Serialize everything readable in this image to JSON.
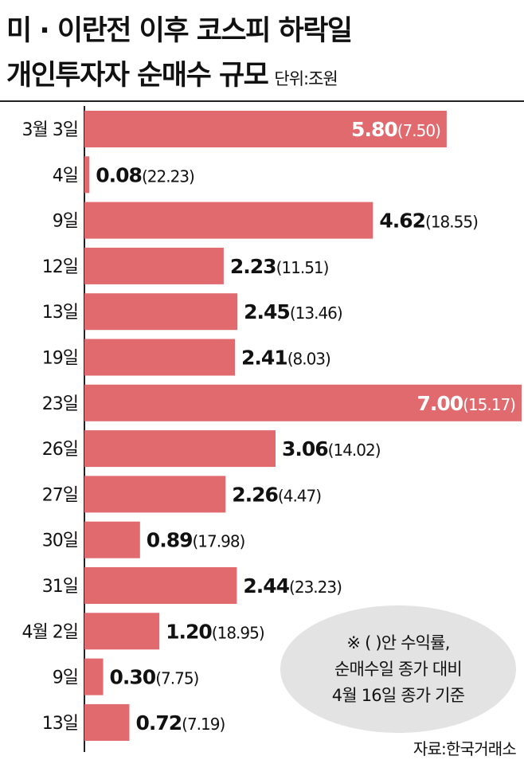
{
  "title_line1": "미 · 이란전 이후 코스피 하락일",
  "title_line2": "개인투자자 순매수 규모",
  "unit": "단위:조원",
  "note": {
    "line1": "※ (   )안 수익률,",
    "line2": "순매수일 종가 대비",
    "line3": "4월 16일 종가 기준"
  },
  "source": "자료:한국거래소",
  "colors": {
    "bar": "#e06a6e",
    "axis": "#222222",
    "note_bg": "#e3e3e3"
  },
  "chart_data": {
    "type": "bar",
    "orientation": "horizontal",
    "categories": [
      "3월 3일",
      "4일",
      "9일",
      "12일",
      "13일",
      "19일",
      "23일",
      "26일",
      "27일",
      "30일",
      "31일",
      "4월 2일",
      "9일",
      "13일"
    ],
    "series": [
      {
        "values": [
          5.8,
          0.08,
          4.62,
          2.23,
          2.45,
          2.41,
          7.0,
          3.06,
          2.26,
          0.89,
          2.44,
          1.2,
          0.3,
          0.72
        ]
      }
    ],
    "value_labels": [
      "5.80",
      "0.08",
      "4.62",
      "2.23",
      "2.45",
      "2.41",
      "7.00",
      "3.06",
      "2.26",
      "0.89",
      "2.44",
      "1.20",
      "0.30",
      "0.72"
    ],
    "returns": [
      7.5,
      22.23,
      18.55,
      11.51,
      13.46,
      8.03,
      15.17,
      14.02,
      4.47,
      17.98,
      23.23,
      18.95,
      7.75,
      7.19
    ],
    "return_labels": [
      "(7.50)",
      "(22.23)",
      "(18.55)",
      "(11.51)",
      "(13.46)",
      "(8.03)",
      "(15.17)",
      "(14.02)",
      "(4.47)",
      "(17.98)",
      "(23.23)",
      "(18.95)",
      "(7.75)",
      "(7.19)"
    ],
    "labels_inside": [
      true,
      false,
      false,
      false,
      false,
      false,
      true,
      false,
      false,
      false,
      false,
      false,
      false,
      false
    ],
    "xlim": [
      0,
      7.0
    ],
    "grid": false
  }
}
